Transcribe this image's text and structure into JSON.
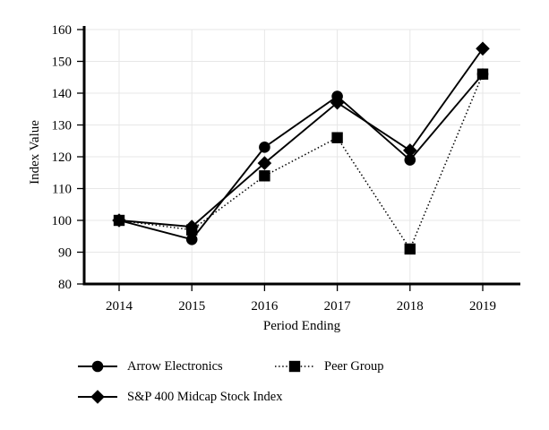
{
  "chart_data": {
    "type": "line",
    "title": "",
    "xlabel": "Period Ending",
    "ylabel": "Index Value",
    "x": [
      "2014",
      "2015",
      "2016",
      "2017",
      "2018",
      "2019"
    ],
    "ylim": [
      80,
      160
    ],
    "yticks": [
      80,
      90,
      100,
      110,
      120,
      130,
      140,
      150,
      160
    ],
    "grid": true,
    "legend_position": "below-left",
    "series": [
      {
        "name": "Arrow Electronics",
        "marker": "circle",
        "line": "solid",
        "values": [
          100,
          94,
          123,
          139,
          119,
          146
        ]
      },
      {
        "name": "Peer Group",
        "marker": "square",
        "line": "dotted",
        "values": [
          100,
          97,
          114,
          126,
          91,
          146
        ]
      },
      {
        "name": "S&P 400 Midcap Stock Index",
        "marker": "diamond",
        "line": "solid",
        "values": [
          100,
          98,
          118,
          137,
          122,
          154
        ]
      }
    ]
  },
  "icons": {
    "circle_marker": "filled-circle",
    "square_marker": "filled-square",
    "diamond_marker": "filled-diamond"
  },
  "colors": {
    "ink": "#000000",
    "grid": "#e7e7e7",
    "background": "#ffffff"
  }
}
